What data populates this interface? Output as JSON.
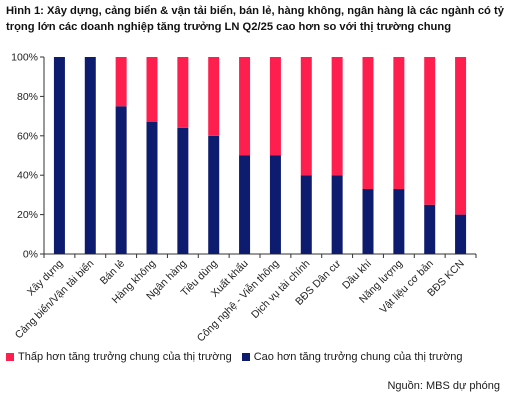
{
  "title": "Hình 1: Xây dựng, cảng biển & vận tải biển, bán lẻ, hàng không, ngân hàng là các ngành có tỷ trọng lớn các doanh nghiệp tăng trưởng LN Q2/25 cao hơn so với thị trường chung",
  "source": "Nguồn: MBS dự phóng",
  "colors": {
    "lower": "#ff1f4e",
    "higher": "#0d1c6e"
  },
  "chart_data": {
    "type": "bar",
    "stacked": true,
    "categories": [
      "Xây dựng",
      "Cảng biển/Vận tải biển",
      "Bán lẻ",
      "Hàng không",
      "Ngân hàng",
      "Tiêu dùng",
      "Xuất khẩu",
      "Công nghệ - Viễn thông",
      "Dịch vụ tài chính",
      "BĐS Dân cư",
      "Dầu khí",
      "Năng lượng",
      "Vật liệu cơ bản",
      "BĐS KCN"
    ],
    "series": [
      {
        "name": "Cao hơn tăng trưởng chung của thị trường",
        "values": [
          100,
          100,
          75,
          67,
          64,
          60,
          50,
          50,
          40,
          40,
          33,
          33,
          25,
          20
        ]
      },
      {
        "name": "Thấp hơn tăng trưởng chung của thị trường",
        "values": [
          0,
          0,
          25,
          33,
          36,
          40,
          50,
          50,
          60,
          60,
          67,
          67,
          75,
          80
        ]
      }
    ],
    "ylim": [
      0,
      100
    ],
    "yticks": [
      "0%",
      "20%",
      "40%",
      "60%",
      "80%",
      "100%"
    ],
    "legend_position": "bottom",
    "grid": false
  }
}
